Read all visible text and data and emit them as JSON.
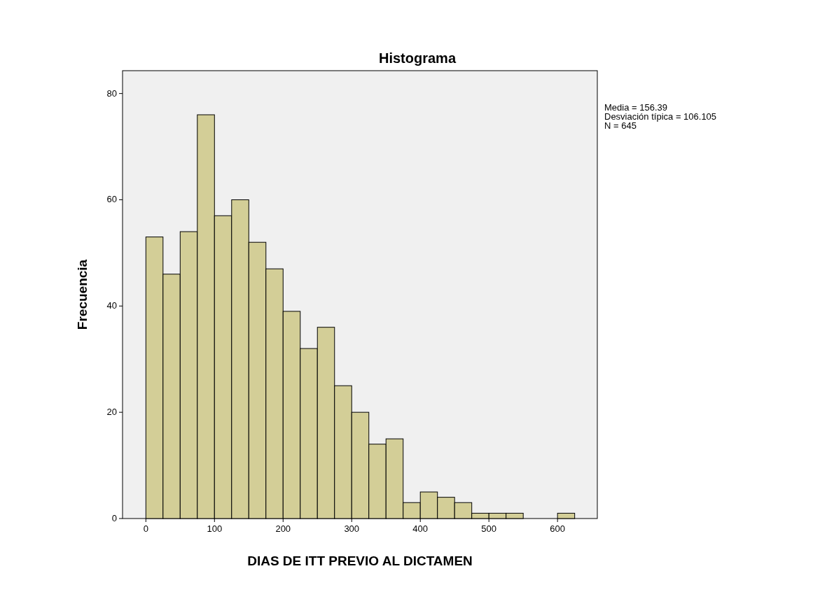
{
  "chart_data": {
    "type": "histogram",
    "title": "Histograma",
    "xlabel": "DIAS DE ITT PREVIO AL DICTAMEN",
    "ylabel": "Frecuencia",
    "bins": [
      0,
      25,
      50,
      75,
      100,
      125,
      150,
      175,
      200,
      225,
      250,
      275,
      300,
      325,
      350,
      375,
      400,
      425,
      450,
      475,
      500,
      525,
      550,
      575,
      600,
      625
    ],
    "values": [
      53,
      46,
      54,
      76,
      57,
      60,
      52,
      47,
      39,
      32,
      36,
      25,
      20,
      14,
      15,
      3,
      5,
      4,
      3,
      1,
      1,
      1,
      0,
      0,
      1
    ],
    "color": "#d3ce97",
    "xlim": [
      -34,
      658
    ],
    "xticks": [
      0,
      100,
      200,
      300,
      400,
      500,
      600
    ],
    "ylim": [
      0,
      84.3
    ],
    "yticks": [
      0,
      20,
      40,
      60,
      80
    ],
    "annotations": [
      "Media = 156.39",
      "Desviación típica = 106.105",
      "N = 645"
    ]
  }
}
